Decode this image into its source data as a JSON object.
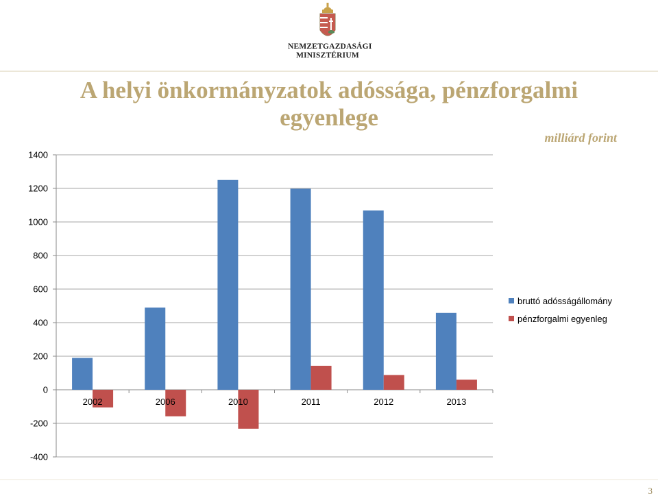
{
  "header": {
    "logo_line1": "NEMZETGAZDASÁGI",
    "logo_line2": "MINISZTÉRIUM"
  },
  "slide": {
    "title": "A helyi önkormányzatok adóssága, pénzforgalmi egyenlege",
    "unit": "milliárd forint",
    "page_number": "3"
  },
  "colors": {
    "series_debt": "#4f81bd",
    "series_balance": "#c0504d",
    "title": "#bba673"
  },
  "chart_data": {
    "type": "bar",
    "categories": [
      "2002",
      "2006",
      "2010",
      "2011",
      "2012",
      "2013"
    ],
    "series": [
      {
        "name": "bruttó adósságállomány",
        "values": [
          190,
          490,
          1250,
          1198,
          1068,
          458
        ]
      },
      {
        "name": "pénzforgalmi egyenleg",
        "values": [
          -105,
          -158,
          -232,
          143,
          88,
          60
        ]
      }
    ],
    "ylim": [
      -400,
      1400
    ],
    "yticks": [
      "1400",
      "1200",
      "1000",
      "800",
      "600",
      "400",
      "200",
      "0",
      "-200",
      "-400"
    ],
    "grid": true,
    "legend_position": "right"
  }
}
